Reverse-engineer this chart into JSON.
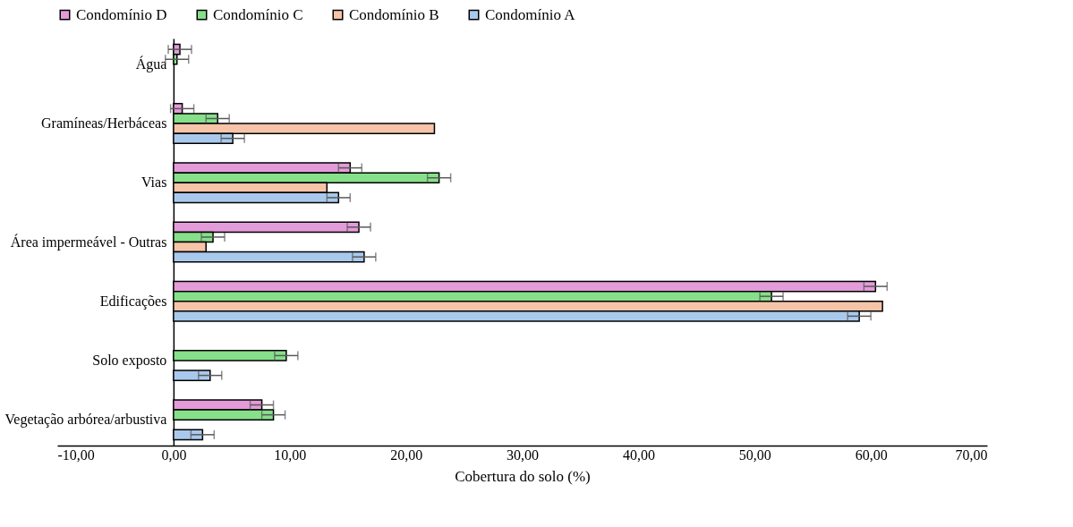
{
  "chart_data": {
    "type": "bar",
    "orientation": "horizontal",
    "xlabel": "Cobertura do solo (%)",
    "categories": [
      "Água",
      "Gramíneas/Herbáceas",
      "Vias",
      "Área impermeável - Outras",
      "Edificações",
      "Solo exposto",
      "Vegetação arbórea/arbustiva"
    ],
    "series": [
      {
        "name": "Condomínio D",
        "color": "#e39bd9",
        "values": [
          0.55,
          0.75,
          15.2,
          15.95,
          60.4,
          null,
          7.6
        ],
        "errors": [
          1,
          1,
          1,
          1,
          1,
          null,
          1
        ]
      },
      {
        "name": "Condomínio C",
        "color": "#86e08a",
        "values": [
          0.3,
          3.8,
          22.85,
          3.4,
          51.45,
          9.7,
          8.6
        ],
        "errors": [
          1,
          1,
          1,
          1,
          1,
          1,
          1
        ]
      },
      {
        "name": "Condomínio B",
        "color": "#f6c4a8",
        "values": [
          null,
          22.45,
          13.2,
          2.8,
          61.0,
          null,
          null
        ]
      },
      {
        "name": "Condomínio A",
        "color": "#a9c9ec",
        "values": [
          null,
          5.1,
          14.2,
          16.4,
          59.0,
          3.15,
          2.5
        ],
        "errors": [
          null,
          1,
          1,
          1,
          1,
          1,
          1
        ]
      }
    ],
    "xlim": [
      -10,
      70
    ],
    "xticks": [
      {
        "value": -10,
        "label": "-10,00"
      },
      {
        "value": 0,
        "label": "0,00"
      },
      {
        "value": 10,
        "label": "10,00"
      },
      {
        "value": 20,
        "label": "20,00"
      },
      {
        "value": 30,
        "label": "30,00"
      },
      {
        "value": 40,
        "label": "40,00"
      },
      {
        "value": 50,
        "label": "50,00"
      },
      {
        "value": 60,
        "label": "60,00"
      },
      {
        "value": 70,
        "label": "70,00"
      }
    ],
    "grid": false,
    "legend": "top"
  }
}
